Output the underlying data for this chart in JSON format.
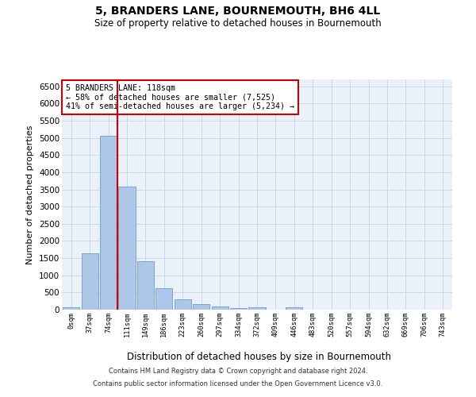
{
  "title": "5, BRANDERS LANE, BOURNEMOUTH, BH6 4LL",
  "subtitle": "Size of property relative to detached houses in Bournemouth",
  "xlabel": "Distribution of detached houses by size in Bournemouth",
  "ylabel": "Number of detached properties",
  "footer_line1": "Contains HM Land Registry data © Crown copyright and database right 2024.",
  "footer_line2": "Contains public sector information licensed under the Open Government Licence v3.0.",
  "bar_labels": [
    "0sqm",
    "37sqm",
    "74sqm",
    "111sqm",
    "149sqm",
    "186sqm",
    "223sqm",
    "260sqm",
    "297sqm",
    "334sqm",
    "372sqm",
    "409sqm",
    "446sqm",
    "483sqm",
    "520sqm",
    "557sqm",
    "594sqm",
    "632sqm",
    "669sqm",
    "706sqm",
    "743sqm"
  ],
  "bar_values": [
    75,
    1630,
    5060,
    3580,
    1400,
    620,
    305,
    155,
    95,
    55,
    60,
    0,
    60,
    0,
    0,
    0,
    0,
    0,
    0,
    0,
    0
  ],
  "bar_color": "#aec6e8",
  "bar_edge_color": "#5a8fc0",
  "ylim": [
    0,
    6700
  ],
  "yticks": [
    0,
    500,
    1000,
    1500,
    2000,
    2500,
    3000,
    3500,
    4000,
    4500,
    5000,
    5500,
    6000,
    6500
  ],
  "vline_color": "#cc0000",
  "annotation_line1": "5 BRANDERS LANE: 118sqm",
  "annotation_line2": "← 58% of detached houses are smaller (7,525)",
  "annotation_line3": "41% of semi-detached houses are larger (5,234) →",
  "annotation_box_color": "#ffffff",
  "annotation_box_edge": "#cc0000",
  "grid_color": "#c8d8e8",
  "bg_color": "#eaf1f8"
}
